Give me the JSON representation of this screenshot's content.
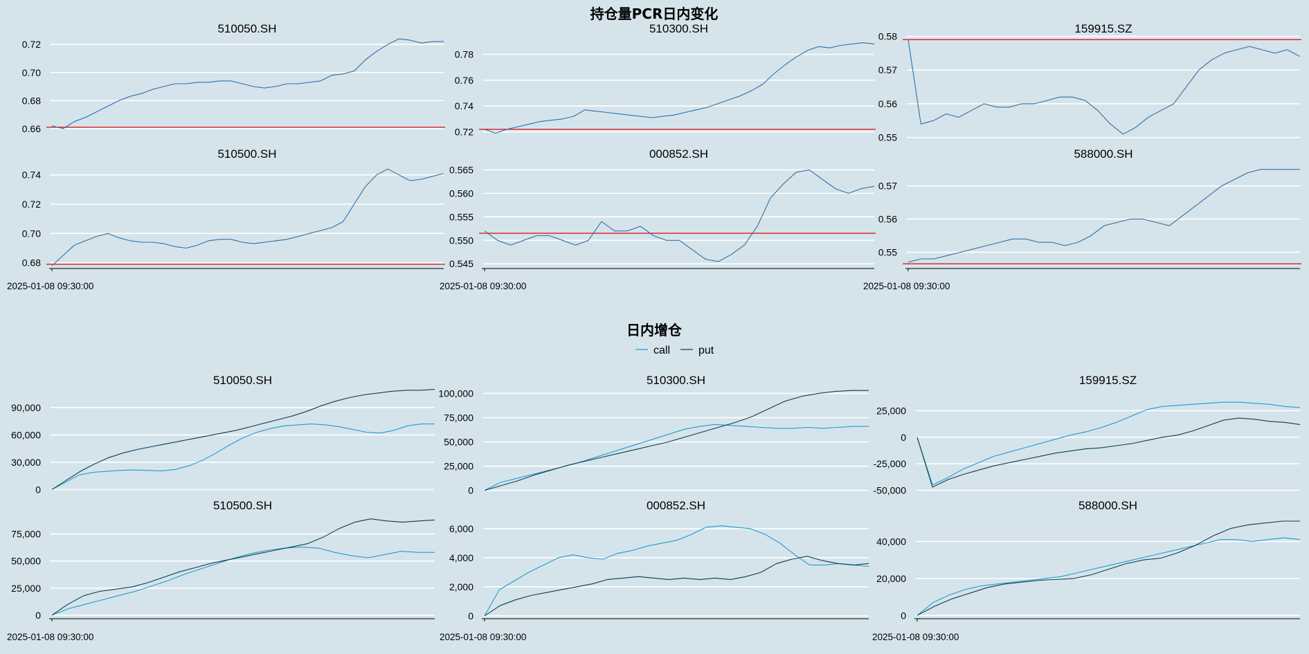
{
  "title_top": "持仓量PCR日内变化",
  "title_bottom": "日内增仓",
  "legend": {
    "call_label": "call",
    "put_label": "put"
  },
  "colors": {
    "background": "#d5e4eb",
    "pcr_line": "#2e6fa7",
    "ref_line": "#e0191b",
    "call": "#1f9bd0",
    "put": "#0e3b4e",
    "grid": "#ffffff",
    "axis": "#000000"
  },
  "chart_data": [
    {
      "type": "line",
      "group": "pcr",
      "title": "510050.SH",
      "x_label_first": "",
      "ylim": [
        0.655,
        0.727
      ],
      "yticks": [
        0.66,
        0.68,
        0.7,
        0.72
      ],
      "ytick_labels": [
        "0.66",
        "0.68",
        "0.70",
        "0.72"
      ],
      "ref_value": 0.661,
      "series": [
        {
          "name": "PCR",
          "values": [
            0.662,
            0.66,
            0.665,
            0.668,
            0.672,
            0.676,
            0.68,
            0.683,
            0.685,
            0.688,
            0.69,
            0.692,
            0.692,
            0.693,
            0.693,
            0.694,
            0.694,
            0.692,
            0.69,
            0.689,
            0.69,
            0.692,
            0.692,
            0.693,
            0.694,
            0.698,
            0.699,
            0.701,
            0.709,
            0.715,
            0.72,
            0.724,
            0.723,
            0.721,
            0.722,
            0.722
          ]
        }
      ]
    },
    {
      "type": "line",
      "group": "pcr",
      "title": "510300.SH",
      "x_label_first": "",
      "ylim": [
        0.716,
        0.791
      ],
      "yticks": [
        0.72,
        0.74,
        0.76,
        0.78
      ],
      "ytick_labels": [
        "0.72",
        "0.74",
        "0.76",
        "0.78"
      ],
      "ref_value": 0.722,
      "series": [
        {
          "name": "PCR",
          "values": [
            0.722,
            0.719,
            0.722,
            0.724,
            0.726,
            0.728,
            0.729,
            0.73,
            0.732,
            0.737,
            0.736,
            0.735,
            0.734,
            0.733,
            0.732,
            0.731,
            0.732,
            0.733,
            0.735,
            0.737,
            0.739,
            0.742,
            0.745,
            0.748,
            0.752,
            0.757,
            0.765,
            0.772,
            0.778,
            0.783,
            0.786,
            0.785,
            0.787,
            0.788,
            0.789,
            0.788
          ]
        }
      ]
    },
    {
      "type": "line",
      "group": "pcr",
      "title": "159915.SZ",
      "x_label_first": "",
      "ylim": [
        0.5485,
        0.5805
      ],
      "yticks": [
        0.55,
        0.56,
        0.57,
        0.58
      ],
      "ytick_labels": [
        "0.55",
        "0.56",
        "0.57",
        "0.58"
      ],
      "ref_value": 0.579,
      "series": [
        {
          "name": "PCR",
          "values": [
            0.579,
            0.554,
            0.555,
            0.557,
            0.556,
            0.558,
            0.56,
            0.559,
            0.559,
            0.56,
            0.56,
            0.561,
            0.562,
            0.562,
            0.561,
            0.558,
            0.554,
            0.551,
            0.553,
            0.556,
            0.558,
            0.56,
            0.565,
            0.57,
            0.573,
            0.575,
            0.576,
            0.577,
            0.576,
            0.575,
            0.576,
            0.574
          ]
        }
      ]
    },
    {
      "type": "line",
      "group": "pcr",
      "title": "510500.SH",
      "x_label_first": "2025-01-08 09:30:00",
      "ylim": [
        0.677,
        0.746
      ],
      "yticks": [
        0.68,
        0.7,
        0.72,
        0.74
      ],
      "ytick_labels": [
        "0.68",
        "0.70",
        "0.72",
        "0.74"
      ],
      "ref_value": 0.679,
      "series": [
        {
          "name": "PCR",
          "values": [
            0.678,
            0.685,
            0.692,
            0.695,
            0.698,
            0.7,
            0.697,
            0.695,
            0.694,
            0.694,
            0.693,
            0.691,
            0.69,
            0.692,
            0.695,
            0.696,
            0.696,
            0.694,
            0.693,
            0.694,
            0.695,
            0.696,
            0.698,
            0.7,
            0.702,
            0.704,
            0.708,
            0.72,
            0.732,
            0.74,
            0.744,
            0.74,
            0.736,
            0.737,
            0.739,
            0.741
          ]
        }
      ]
    },
    {
      "type": "line",
      "group": "pcr",
      "title": "000852.SH",
      "x_label_first": "2025-01-08 09:30:00",
      "ylim": [
        0.5443,
        0.5658
      ],
      "yticks": [
        0.545,
        0.55,
        0.555,
        0.56,
        0.565
      ],
      "ytick_labels": [
        "0.545",
        "0.550",
        "0.555",
        "0.560",
        "0.565"
      ],
      "ref_value": 0.5515,
      "series": [
        {
          "name": "PCR",
          "values": [
            0.552,
            0.55,
            0.549,
            0.55,
            0.551,
            0.551,
            0.55,
            0.549,
            0.55,
            0.554,
            0.552,
            0.552,
            0.553,
            0.551,
            0.55,
            0.55,
            0.548,
            0.546,
            0.5455,
            0.547,
            0.549,
            0.553,
            0.559,
            0.562,
            0.5645,
            0.565,
            0.563,
            0.561,
            0.56,
            0.561,
            0.5615
          ]
        }
      ]
    },
    {
      "type": "line",
      "group": "pcr",
      "title": "588000.SH",
      "x_label_first": "2025-01-08 09:30:00",
      "ylim": [
        0.5455,
        0.576
      ],
      "yticks": [
        0.55,
        0.56,
        0.57
      ],
      "ytick_labels": [
        "0.55",
        "0.56",
        "0.57"
      ],
      "ref_value": 0.5465,
      "series": [
        {
          "name": "PCR",
          "values": [
            0.547,
            0.548,
            0.548,
            0.549,
            0.55,
            0.551,
            0.552,
            0.553,
            0.554,
            0.554,
            0.553,
            0.553,
            0.552,
            0.553,
            0.555,
            0.558,
            0.559,
            0.56,
            0.56,
            0.559,
            0.558,
            0.561,
            0.564,
            0.567,
            0.57,
            0.572,
            0.574,
            0.575,
            0.575,
            0.575,
            0.575
          ]
        }
      ]
    },
    {
      "type": "line",
      "group": "oi",
      "title": "510050.SH",
      "x_label_first": "",
      "ylim": [
        -2000,
        112000
      ],
      "yticks": [
        0,
        30000,
        60000,
        90000
      ],
      "ytick_labels": [
        "0",
        "30,000",
        "60,000",
        "90,000"
      ],
      "series": [
        {
          "name": "call",
          "values": [
            0,
            8000,
            16000,
            19000,
            20000,
            21000,
            21500,
            21000,
            20500,
            22000,
            26000,
            32000,
            40000,
            49000,
            57000,
            63000,
            67000,
            70000,
            71000,
            72000,
            71000,
            69000,
            66000,
            63000,
            62000,
            65000,
            70000,
            72000,
            72000
          ]
        },
        {
          "name": "put",
          "values": [
            0,
            10000,
            20000,
            28000,
            35000,
            40000,
            44000,
            47000,
            50000,
            53000,
            56000,
            59000,
            62000,
            65000,
            69000,
            73000,
            77000,
            81000,
            86000,
            92000,
            97000,
            101000,
            104000,
            106000,
            108000,
            109000,
            109000,
            110000
          ]
        }
      ]
    },
    {
      "type": "line",
      "group": "oi",
      "title": "510300.SH",
      "x_label_first": "",
      "ylim": [
        -1000,
        106000
      ],
      "yticks": [
        0,
        25000,
        50000,
        75000,
        100000
      ],
      "ytick_labels": [
        "0",
        "25,000",
        "50,000",
        "75,000",
        "100,000"
      ],
      "series": [
        {
          "name": "call",
          "values": [
            0,
            8000,
            12000,
            16000,
            20000,
            24000,
            28000,
            33000,
            38000,
            43000,
            48000,
            53000,
            58000,
            63000,
            66000,
            68000,
            67000,
            66000,
            65000,
            64000,
            64000,
            65000,
            64000,
            65000,
            66000,
            66000
          ]
        },
        {
          "name": "put",
          "values": [
            0,
            5000,
            10000,
            16000,
            21000,
            26000,
            30000,
            34000,
            38000,
            42000,
            46000,
            50000,
            55000,
            60000,
            65000,
            70000,
            76000,
            84000,
            92000,
            97000,
            100000,
            102000,
            103000,
            103000
          ]
        }
      ]
    },
    {
      "type": "line",
      "group": "oi",
      "title": "159915.SZ",
      "x_label_first": "",
      "ylim": [
        -51000,
        37000
      ],
      "yticks": [
        -50000,
        -25000,
        0,
        25000
      ],
      "ytick_labels": [
        "-50,000",
        "-25,000",
        "0",
        "25,000"
      ],
      "series": [
        {
          "name": "call",
          "values": [
            0,
            -45000,
            -38000,
            -30000,
            -24000,
            -18000,
            -14000,
            -10000,
            -6000,
            -2000,
            2000,
            5000,
            9000,
            14000,
            20000,
            26000,
            29000,
            30000,
            31000,
            32000,
            33000,
            33000,
            32000,
            31000,
            29000,
            28000
          ]
        },
        {
          "name": "put",
          "values": [
            0,
            -47000,
            -40000,
            -35000,
            -31000,
            -27000,
            -24000,
            -21000,
            -18000,
            -15000,
            -13000,
            -11000,
            -10000,
            -8000,
            -6000,
            -3000,
            0,
            2000,
            6000,
            11000,
            16000,
            18000,
            17000,
            15000,
            14000,
            12000
          ]
        }
      ]
    },
    {
      "type": "line",
      "group": "oi",
      "title": "510500.SH",
      "x_label_first": "2025-01-08 09:30:00",
      "ylim": [
        -2000,
        92000
      ],
      "yticks": [
        0,
        25000,
        50000,
        75000
      ],
      "ytick_labels": [
        "0",
        "25,000",
        "50,000",
        "75,000"
      ],
      "series": [
        {
          "name": "call",
          "values": [
            0,
            6000,
            10000,
            14000,
            18000,
            22000,
            27000,
            32000,
            38000,
            43000,
            48000,
            53000,
            57000,
            60000,
            62000,
            63000,
            62000,
            58000,
            55000,
            53000,
            56000,
            59000,
            58000,
            58000
          ]
        },
        {
          "name": "put",
          "values": [
            0,
            10000,
            18000,
            22000,
            24000,
            26000,
            30000,
            35000,
            40000,
            44000,
            48000,
            51000,
            54000,
            57000,
            60000,
            63000,
            66000,
            72000,
            80000,
            86000,
            89000,
            87000,
            86000,
            87000,
            88000
          ]
        }
      ]
    },
    {
      "type": "line",
      "group": "oi",
      "title": "000852.SH",
      "x_label_first": "2025-01-08 09:30:00",
      "ylim": [
        -100,
        6900
      ],
      "yticks": [
        0,
        2000,
        4000,
        6000
      ],
      "ytick_labels": [
        "0",
        "2,000",
        "4,000",
        "6,000"
      ],
      "series": [
        {
          "name": "call",
          "values": [
            0,
            1800,
            2400,
            3000,
            3500,
            4000,
            4200,
            4000,
            3900,
            4300,
            4500,
            4800,
            5000,
            5200,
            5600,
            6100,
            6200,
            6100,
            6000,
            5600,
            5000,
            4200,
            3500,
            3500,
            3600,
            3500,
            3400
          ]
        },
        {
          "name": "put",
          "values": [
            0,
            700,
            1100,
            1400,
            1600,
            1800,
            2000,
            2200,
            2500,
            2600,
            2700,
            2600,
            2500,
            2600,
            2500,
            2600,
            2500,
            2700,
            3000,
            3600,
            3900,
            4100,
            3800,
            3600,
            3500,
            3600
          ]
        }
      ]
    },
    {
      "type": "line",
      "group": "oi",
      "title": "588000.SH",
      "x_label_first": "2025-01-08 09:30:00",
      "ylim": [
        -1000,
        54000
      ],
      "yticks": [
        0,
        20000,
        40000
      ],
      "ytick_labels": [
        "0",
        "20,000",
        "40,000"
      ],
      "series": [
        {
          "name": "call",
          "values": [
            0,
            7000,
            11000,
            14000,
            16000,
            17000,
            18000,
            19000,
            20000,
            21000,
            23000,
            25000,
            27000,
            29000,
            31000,
            33000,
            35000,
            37000,
            39000,
            41000,
            41000,
            40000,
            41000,
            42000,
            41000
          ]
        },
        {
          "name": "put",
          "values": [
            0,
            5000,
            9000,
            12000,
            15000,
            17000,
            18000,
            19000,
            19500,
            20000,
            22000,
            25000,
            28000,
            30000,
            31000,
            34000,
            38000,
            43000,
            47000,
            49000,
            50000,
            51000,
            51000
          ]
        }
      ]
    }
  ]
}
